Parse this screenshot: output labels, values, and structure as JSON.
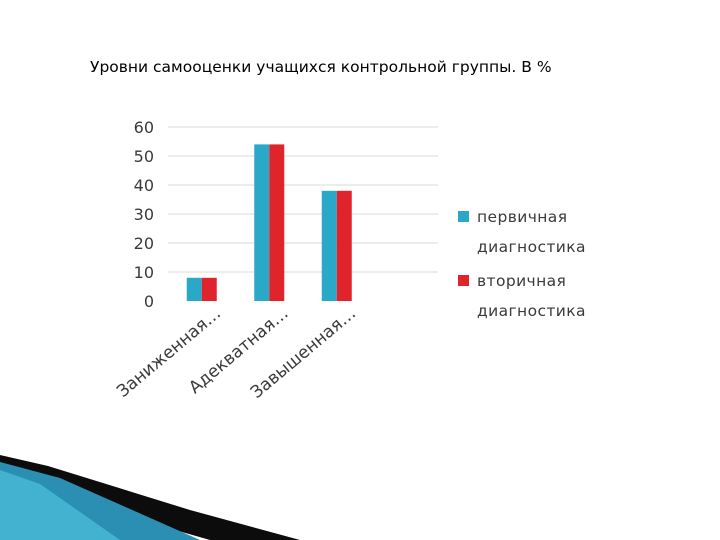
{
  "slide": {
    "title": "Уровни самооценки учащихся контрольной группы. В %"
  },
  "colors": {
    "series_1": "#2aa8c8",
    "series_2": "#e0242c",
    "grid": "#d9d9d9",
    "decor_dark": "#0c0c0c",
    "decor_teal": "#2a8fb3"
  },
  "chart_data": {
    "type": "bar",
    "categories": [
      "Заниженная",
      "Адекватная",
      "Завышенная",
      ""
    ],
    "category_labels": [
      "Заниженная…",
      "Адекватная…",
      "Завышенная…",
      ""
    ],
    "series": [
      {
        "name": "первичная диагностика",
        "values": [
          8,
          54,
          38,
          0
        ],
        "legend_lines": [
          "первичная",
          "диагностика"
        ]
      },
      {
        "name": "вторичная диагностика",
        "values": [
          8,
          54,
          38,
          0
        ],
        "legend_lines": [
          "вторичная",
          "диагностика"
        ]
      }
    ],
    "y_ticks": [
      0,
      10,
      20,
      30,
      40,
      50,
      60
    ],
    "ylim": [
      0,
      60
    ],
    "grid": true,
    "legend_position": "right",
    "title": "",
    "xlabel": "",
    "ylabel": ""
  }
}
